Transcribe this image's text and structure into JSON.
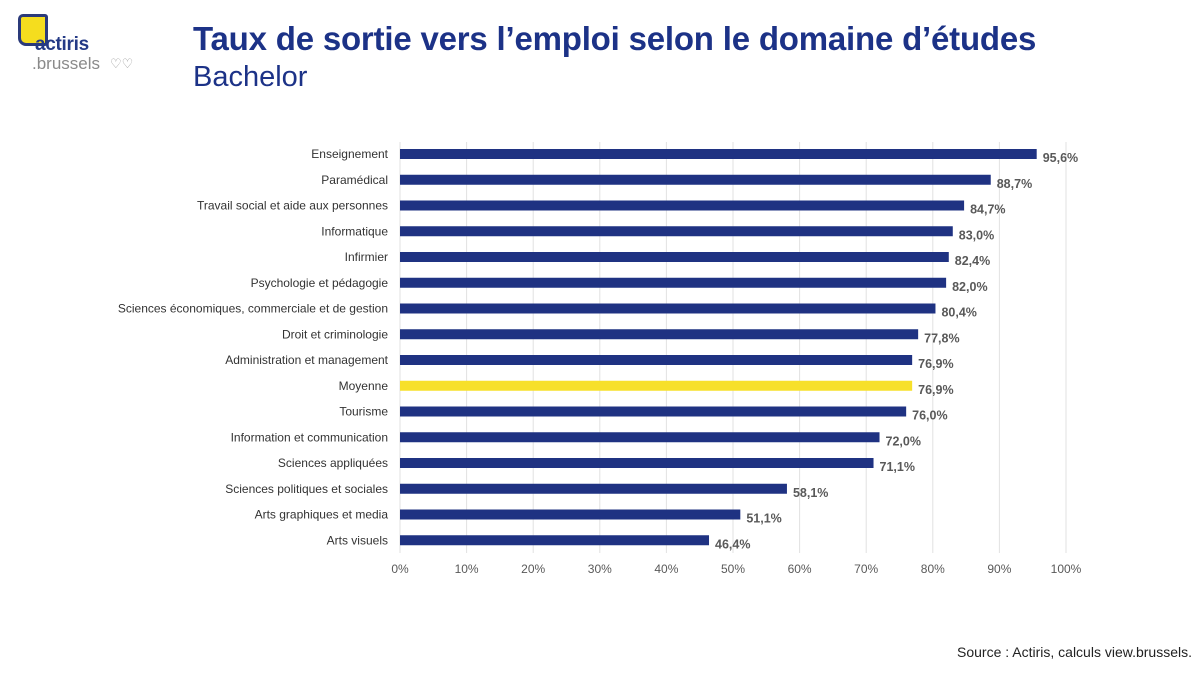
{
  "logo": {
    "line1": "actiris",
    "line2": ".brussels",
    "icon": "hearts-icon"
  },
  "header": {
    "title": "Taux de sortie vers l’emploi selon le domaine d’études",
    "subtitle": "Bachelor"
  },
  "source": "Source : Actiris, calculs view.brussels.",
  "chart_data": {
    "type": "bar",
    "orientation": "horizontal",
    "categories": [
      "Enseignement",
      "Paramédical",
      "Travail social et aide aux personnes",
      "Informatique",
      "Infirmier",
      "Psychologie et pédagogie",
      "Sciences économiques, commerciale et de gestion",
      "Droit et criminologie",
      "Administration et management",
      "Moyenne",
      "Tourisme",
      "Information et communication",
      "Sciences appliquées",
      "Sciences politiques et sociales",
      "Arts graphiques et media",
      "Arts visuels"
    ],
    "values": [
      95.6,
      88.7,
      84.7,
      83.0,
      82.4,
      82.0,
      80.4,
      77.8,
      76.9,
      76.9,
      76.0,
      72.0,
      71.1,
      58.1,
      51.1,
      46.4
    ],
    "data_labels": [
      "95,6%",
      "88,7%",
      "84,7%",
      "83,0%",
      "82,4%",
      "82,0%",
      "80,4%",
      "77,8%",
      "76,9%",
      "76,9%",
      "76,0%",
      "72,0%",
      "71,1%",
      "58,1%",
      "51,1%",
      "46,4%"
    ],
    "xlim": [
      0,
      100
    ],
    "x_ticks": [
      "0%",
      "10%",
      "20%",
      "30%",
      "40%",
      "50%",
      "60%",
      "70%",
      "80%",
      "90%",
      "100%"
    ],
    "grid": true,
    "colors": {
      "bar": "#1f3282",
      "highlight": "#f7e02a",
      "highlight_category": "Moyenne"
    }
  }
}
